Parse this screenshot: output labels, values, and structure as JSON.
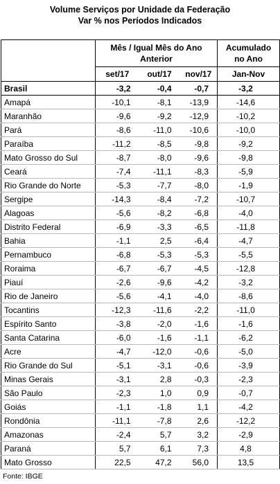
{
  "title": [
    "Volume Serviços por Unidade da Federação",
    "Var % nos Períodos Indicados"
  ],
  "table": {
    "group_headers": [
      "Mês / Igual Mês do Ano Anterior",
      "Acumulado no Ano"
    ],
    "columns": [
      "set/17",
      "out/17",
      "nov/17",
      "Jan-Nov"
    ],
    "rows": [
      [
        "Brasil",
        "-3,2",
        "-0,4",
        "-0,7",
        "-3,2"
      ],
      [
        "Amapá",
        "-10,1",
        "-8,1",
        "-13,9",
        "-14,6"
      ],
      [
        "Maranhão",
        "-9,6",
        "-9,2",
        "-12,9",
        "-10,2"
      ],
      [
        "Pará",
        "-8,6",
        "-11,0",
        "-10,6",
        "-10,0"
      ],
      [
        "Paraíba",
        "-11,2",
        "-8,5",
        "-9,8",
        "-9,2"
      ],
      [
        "Mato Grosso do Sul",
        "-8,7",
        "-8,0",
        "-9,6",
        "-9,8"
      ],
      [
        "Ceará",
        "-7,4",
        "-11,1",
        "-8,3",
        "-5,9"
      ],
      [
        "Rio Grande do Norte",
        "-5,3",
        "-7,7",
        "-8,0",
        "-1,9"
      ],
      [
        "Sergipe",
        "-14,3",
        "-8,4",
        "-7,2",
        "-10,7"
      ],
      [
        "Alagoas",
        "-5,6",
        "-8,2",
        "-6,8",
        "-4,0"
      ],
      [
        "Distrito Federal",
        "-6,9",
        "-3,3",
        "-6,5",
        "-11,8"
      ],
      [
        "Bahia",
        "-1,1",
        "2,5",
        "-6,4",
        "-4,7"
      ],
      [
        "Pernambuco",
        "-6,8",
        "-5,3",
        "-5,3",
        "-5,5"
      ],
      [
        "Roraima",
        "-6,7",
        "-6,7",
        "-4,5",
        "-12,8"
      ],
      [
        "Piauí",
        "-2,6",
        "-9,6",
        "-4,2",
        "-3,2"
      ],
      [
        "Rio de Janeiro",
        "-5,6",
        "-4,1",
        "-4,0",
        "-8,6"
      ],
      [
        "Tocantins",
        "-12,3",
        "-11,6",
        "-2,2",
        "-11,0"
      ],
      [
        "Espírito Santo",
        "-3,8",
        "-2,0",
        "-1,6",
        "-1,6"
      ],
      [
        "Santa Catarina",
        "-6,0",
        "-1,6",
        "-1,1",
        "-6,2"
      ],
      [
        "Acre",
        "-4,7",
        "-12,0",
        "-0,6",
        "-5,0"
      ],
      [
        "Rio Grande do Sul",
        "-5,1",
        "-3,1",
        "-0,6",
        "-3,9"
      ],
      [
        "Minas Gerais",
        "-3,1",
        "2,8",
        "-0,3",
        "-2,3"
      ],
      [
        "São Paulo",
        "-2,3",
        "1,0",
        "0,9",
        "-0,7"
      ],
      [
        "Goiás",
        "-1,1",
        "-1,8",
        "1,1",
        "-4,2"
      ],
      [
        "Rondônia",
        "-11,1",
        "-7,8",
        "2,6",
        "-12,2"
      ],
      [
        "Amazonas",
        "-2,4",
        "5,7",
        "3,2",
        "-2,9"
      ],
      [
        "Paraná",
        "5,7",
        "6,1",
        "7,3",
        "4,8"
      ],
      [
        "Mato Grosso",
        "22,5",
        "47,2",
        "56,0",
        "13,5"
      ]
    ]
  },
  "source": "Fonte: IBGE"
}
